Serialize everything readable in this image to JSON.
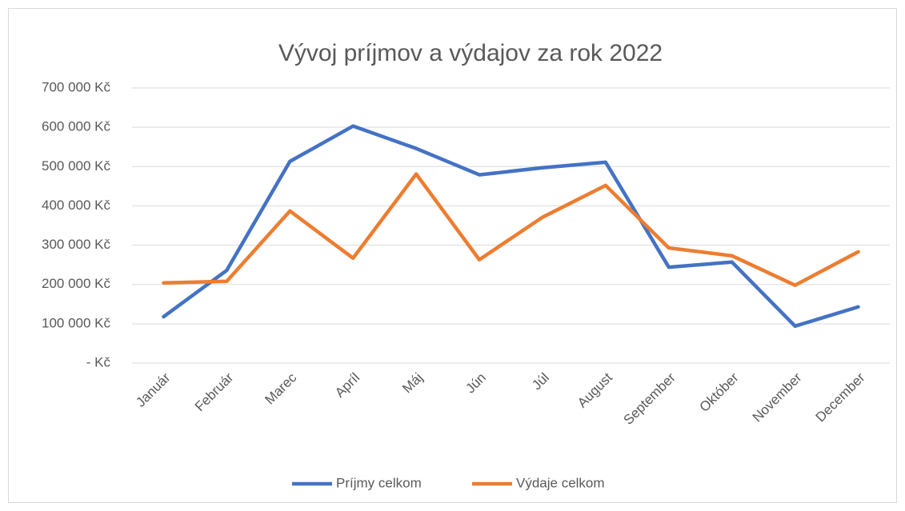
{
  "chart_data": {
    "type": "line",
    "title": "Vývoj príjmov a výdajov za rok 2022",
    "categories": [
      "Január",
      "Február",
      "Marec",
      "Apríl",
      "Máj",
      "Jún",
      "Júl",
      "August",
      "September",
      "Október",
      "November",
      "December"
    ],
    "series": [
      {
        "name": "Príjmy celkom",
        "color": "#4472c4",
        "values": [
          118000,
          236000,
          513000,
          603000,
          546000,
          479000,
          497000,
          511000,
          244000,
          257000,
          94000,
          143000
        ]
      },
      {
        "name": "Výdaje celkom",
        "color": "#ed7d31",
        "values": [
          204000,
          208000,
          387000,
          267000,
          481000,
          263000,
          371000,
          452000,
          293000,
          273000,
          198000,
          283000
        ]
      }
    ],
    "ylim": [
      0,
      700000
    ],
    "yticks": [
      {
        "value": 0,
        "label": "- Kč"
      },
      {
        "value": 100000,
        "label": "100 000 Kč"
      },
      {
        "value": 200000,
        "label": "200 000 Kč"
      },
      {
        "value": 300000,
        "label": "300 000 Kč"
      },
      {
        "value": 400000,
        "label": "400 000 Kč"
      },
      {
        "value": 500000,
        "label": "500 000 Kč"
      },
      {
        "value": 600000,
        "label": "600 000 Kč"
      },
      {
        "value": 700000,
        "label": "700 000 Kč"
      }
    ],
    "grid": true,
    "legend": "bottom"
  }
}
